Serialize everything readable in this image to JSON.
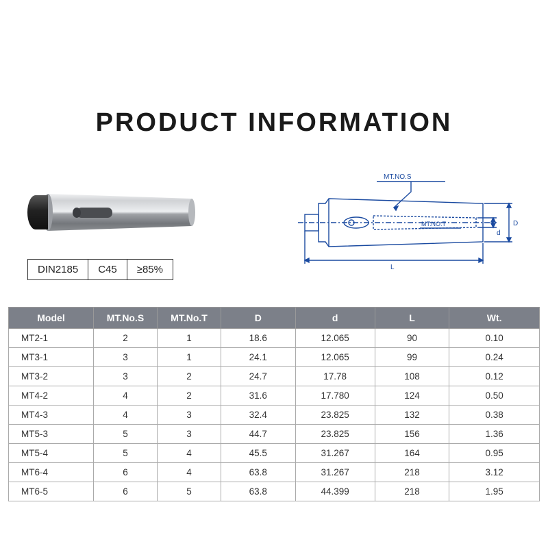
{
  "title": "PRODUCT INFORMATION",
  "badges": {
    "standard": "DIN2185",
    "material": "C45",
    "hardness": "≥85%"
  },
  "diagram": {
    "label_s": "MT.NO.S",
    "label_t": "MT.NO.T",
    "dim_D": "D",
    "dim_d": "d",
    "dim_L": "L",
    "stroke": "#1a4aa0",
    "stroke_width": 1.4
  },
  "product_illustration": {
    "body_fill_light": "#d0d2d5",
    "body_fill_mid": "#a8abaf",
    "body_fill_dark": "#7a7d82",
    "tip_fill": "#2b2b2b",
    "slot_fill": "#555"
  },
  "table": {
    "header_bg": "#7c8089",
    "header_fg": "#ffffff",
    "border": "#aaaaaa",
    "cell_fg": "#333333",
    "columns": [
      "Model",
      "MT.No.S",
      "MT.No.T",
      "D",
      "d",
      "L",
      "Wt."
    ],
    "col_widths_pct": [
      16,
      12,
      12,
      14,
      15,
      14,
      17
    ],
    "rows": [
      [
        "MT2-1",
        "2",
        "1",
        "18.6",
        "12.065",
        "90",
        "0.10"
      ],
      [
        "MT3-1",
        "3",
        "1",
        "24.1",
        "12.065",
        "99",
        "0.24"
      ],
      [
        "MT3-2",
        "3",
        "2",
        "24.7",
        "17.78",
        "108",
        "0.12"
      ],
      [
        "MT4-2",
        "4",
        "2",
        "31.6",
        "17.780",
        "124",
        "0.50"
      ],
      [
        "MT4-3",
        "4",
        "3",
        "32.4",
        "23.825",
        "132",
        "0.38"
      ],
      [
        "MT5-3",
        "5",
        "3",
        "44.7",
        "23.825",
        "156",
        "1.36"
      ],
      [
        "MT5-4",
        "5",
        "4",
        "45.5",
        "31.267",
        "164",
        "0.95"
      ],
      [
        "MT6-4",
        "6",
        "4",
        "63.8",
        "31.267",
        "218",
        "3.12"
      ],
      [
        "MT6-5",
        "6",
        "5",
        "63.8",
        "44.399",
        "218",
        "1.95"
      ]
    ]
  }
}
